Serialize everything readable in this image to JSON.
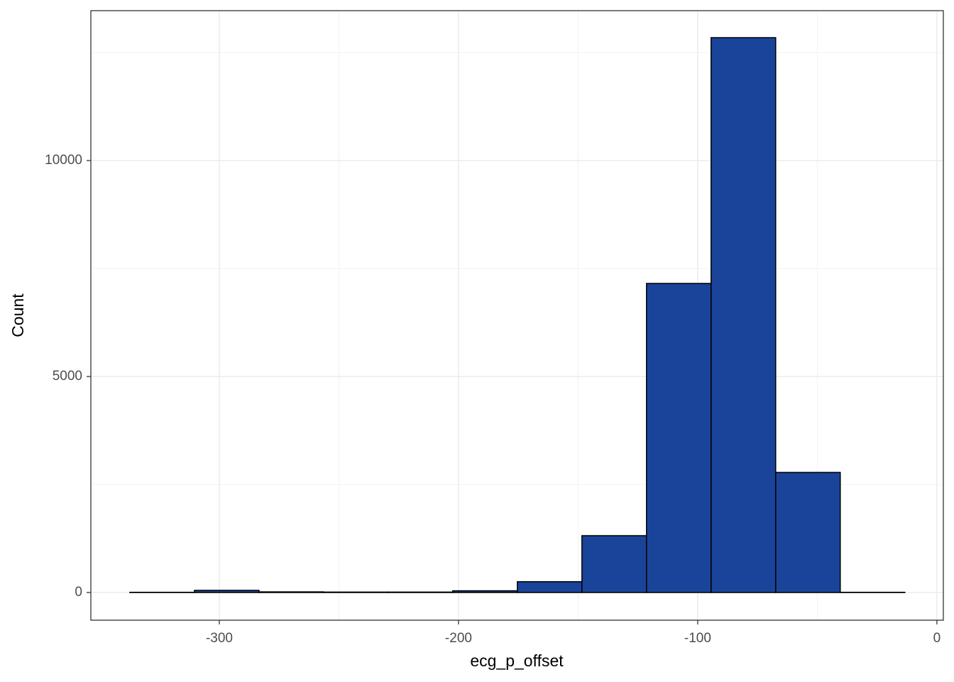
{
  "chart_data": {
    "type": "histogram",
    "x_label": "ecg_p_offset",
    "y_label": "Count",
    "bins": [
      -337.4,
      -310.4,
      -283.4,
      -256.4,
      -229.4,
      -202.4,
      -175.4,
      -148.4,
      -121.4,
      -94.4,
      -67.4,
      -40.4,
      -13.4
    ],
    "counts": [
      5,
      50,
      15,
      10,
      10,
      40,
      250,
      1316,
      7155,
      12845,
      2780,
      5
    ],
    "color": "#1a4499",
    "edge_color": "#000000",
    "xlim": [
      -353.7,
      2.7
    ],
    "xticks": [
      -300,
      -200,
      -100,
      0
    ],
    "minor_xticks": [
      -250,
      -150,
      -50
    ],
    "ylim": [
      -641,
      13470
    ],
    "yticks": [
      0,
      5000,
      10000
    ],
    "minor_yticks": [
      2500,
      7500,
      12500
    ],
    "grid": true
  }
}
